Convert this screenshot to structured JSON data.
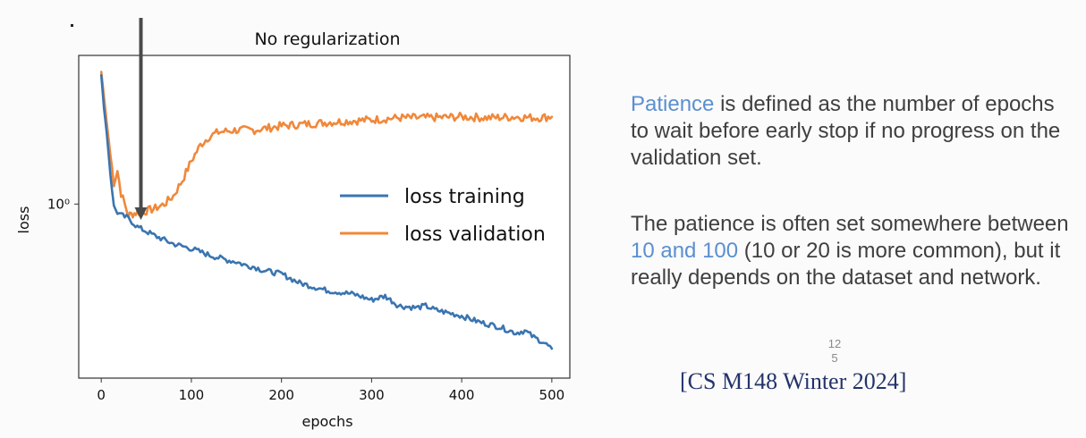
{
  "chart_data": {
    "type": "line",
    "title": "No regularization",
    "xlabel": "epochs",
    "ylabel": "loss",
    "xlim": [
      -25,
      520
    ],
    "ylim": [
      0.53,
      1.72
    ],
    "y_scale": "log",
    "x_ticks": [
      0,
      100,
      200,
      300,
      400,
      500
    ],
    "x_tick_labels": [
      "0",
      "100",
      "200",
      "300",
      "400",
      "500"
    ],
    "y_ticks": [
      1.0
    ],
    "y_tick_labels": [
      "10⁰"
    ],
    "grid": false,
    "legend_position": "center-right",
    "annotation": {
      "type": "arrow",
      "x": 44,
      "points_to": "early stopping point (minimum validation loss)"
    },
    "series": [
      {
        "name": "loss training",
        "color": "#3a75b0",
        "x": [
          0,
          3,
          6,
          10,
          14,
          18,
          22,
          26,
          30,
          40,
          60,
          80,
          100,
          120,
          140,
          150,
          160,
          170,
          180,
          200,
          220,
          250,
          280,
          300,
          315,
          330,
          350,
          360,
          370,
          380,
          400,
          420,
          440,
          460,
          470,
          480,
          490,
          500
        ],
        "values": [
          1.6,
          1.42,
          1.3,
          1.12,
          0.99,
          0.97,
          0.96,
          0.955,
          0.95,
          0.92,
          0.89,
          0.865,
          0.85,
          0.83,
          0.815,
          0.81,
          0.8,
          0.795,
          0.785,
          0.775,
          0.75,
          0.73,
          0.72,
          0.705,
          0.715,
          0.69,
          0.685,
          0.69,
          0.68,
          0.675,
          0.665,
          0.65,
          0.64,
          0.625,
          0.63,
          0.615,
          0.605,
          0.59
        ]
      },
      {
        "name": "loss validation",
        "color": "#f0883a",
        "x": [
          0,
          3,
          6,
          10,
          14,
          18,
          22,
          26,
          30,
          35,
          40,
          50,
          60,
          70,
          80,
          90,
          100,
          110,
          120,
          130,
          150,
          170,
          200,
          230,
          260,
          300,
          330,
          360,
          400,
          430,
          460,
          480,
          500
        ],
        "values": [
          1.62,
          1.48,
          1.35,
          1.2,
          1.08,
          1.13,
          1.04,
          1.0,
          0.96,
          0.965,
          0.97,
          0.975,
          0.985,
          1.0,
          1.03,
          1.09,
          1.17,
          1.24,
          1.28,
          1.3,
          1.31,
          1.31,
          1.33,
          1.34,
          1.35,
          1.36,
          1.37,
          1.37,
          1.375,
          1.37,
          1.375,
          1.37,
          1.375
        ]
      }
    ]
  },
  "text": {
    "para1_highlight": "Patience",
    "para1_rest": " is defined as the number of epochs to wait before early stop if no progress on the validation set.",
    "para2_start": "The patience is often set somewhere between ",
    "para2_highlight": "10 and 100",
    "para2_rest": " (10 or 20 is more common), but it really depends on the dataset and network.",
    "slide_number_top": "12",
    "slide_number_bottom": "5",
    "citation": "[CS M148 Winter 2024]"
  },
  "colors": {
    "accent": "#5b8fd0",
    "body_text": "#3f3f3f",
    "citation": "#23336b",
    "arrow": "#4a4a4a"
  }
}
